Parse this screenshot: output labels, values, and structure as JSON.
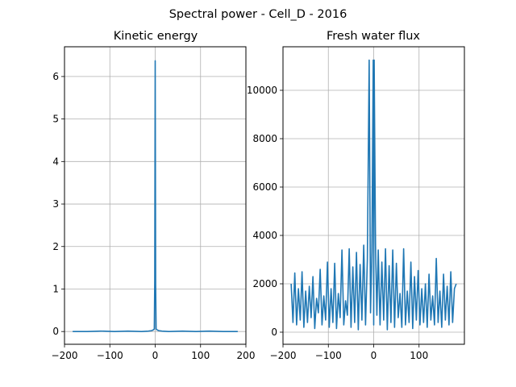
{
  "figure": {
    "suptitle": "Spectral power - Cell_D - 2016",
    "line_color": "#1f77b4",
    "grid_color": "#b0b0b0",
    "background": "#ffffff"
  },
  "chart_data": [
    {
      "type": "line",
      "title": "Kinetic energy",
      "xlabel": "",
      "ylabel": "",
      "xlim": [
        -200,
        200
      ],
      "ylim": [
        -0.3,
        6.7
      ],
      "grid": true,
      "xticks": [
        -200,
        -100,
        0,
        100,
        200
      ],
      "yticks": [
        0,
        1,
        2,
        3,
        4,
        5,
        6
      ],
      "x_range": [
        -182,
        182
      ],
      "series": [
        {
          "x": [
            -182,
            -150,
            -120,
            -90,
            -60,
            -30,
            -15,
            -8,
            -4,
            -2,
            -1,
            0,
            1,
            2,
            4,
            8,
            15,
            30,
            60,
            90,
            120,
            150,
            182
          ],
          "values": [
            0.0,
            0.0,
            0.01,
            0.0,
            0.01,
            0.0,
            0.01,
            0.02,
            0.04,
            0.06,
            1.2,
            6.37,
            1.1,
            0.06,
            0.04,
            0.02,
            0.01,
            0.0,
            0.01,
            0.0,
            0.01,
            0.0,
            0.0
          ]
        }
      ]
    },
    {
      "type": "line",
      "title": "Fresh water flux",
      "xlabel": "",
      "ylabel": "",
      "xlim": [
        -200,
        200
      ],
      "ylim": [
        -500,
        11800
      ],
      "grid": true,
      "xticks": [
        -200,
        -100,
        0,
        100
      ],
      "yticks": [
        0,
        2000,
        4000,
        6000,
        8000,
        10000
      ],
      "x_range": [
        -182,
        182
      ],
      "series": [
        {
          "x": [
            -182,
            -178,
            -174,
            -170,
            -166,
            -162,
            -158,
            -154,
            -150,
            -146,
            -142,
            -138,
            -134,
            -130,
            -126,
            -122,
            -118,
            -114,
            -110,
            -106,
            -102,
            -98,
            -94,
            -90,
            -86,
            -82,
            -78,
            -74,
            -70,
            -66,
            -62,
            -58,
            -54,
            -50,
            -46,
            -42,
            -38,
            -34,
            -30,
            -26,
            -22,
            -18,
            -14,
            -10,
            -7,
            -4,
            -1,
            0,
            1,
            4,
            7,
            10,
            14,
            18,
            22,
            26,
            30,
            34,
            38,
            42,
            46,
            50,
            54,
            58,
            62,
            66,
            70,
            74,
            78,
            82,
            86,
            90,
            94,
            98,
            102,
            106,
            110,
            114,
            118,
            122,
            126,
            130,
            134,
            138,
            142,
            146,
            150,
            154,
            158,
            162,
            166,
            170,
            174,
            178,
            182
          ],
          "values": [
            2000,
            400,
            2450,
            300,
            1800,
            500,
            2500,
            200,
            1700,
            400,
            1900,
            600,
            2300,
            150,
            1400,
            800,
            2600,
            300,
            1500,
            500,
            2900,
            200,
            1800,
            400,
            2850,
            150,
            1600,
            600,
            3400,
            300,
            1300,
            700,
            3450,
            200,
            2700,
            400,
            3300,
            100,
            2800,
            500,
            3600,
            300,
            3000,
            11250,
            800,
            3300,
            11250,
            300,
            11250,
            3600,
            700,
            3400,
            300,
            2900,
            500,
            3450,
            100,
            2750,
            400,
            3400,
            200,
            2850,
            600,
            1600,
            200,
            3450,
            300,
            1700,
            400,
            2900,
            150,
            2300,
            500,
            2550,
            300,
            1800,
            400,
            2000,
            200,
            2400,
            500,
            1500,
            300,
            3050,
            400,
            1700,
            200,
            2400,
            500,
            1900,
            300,
            2500,
            400,
            1800,
            2000
          ]
        }
      ]
    }
  ]
}
